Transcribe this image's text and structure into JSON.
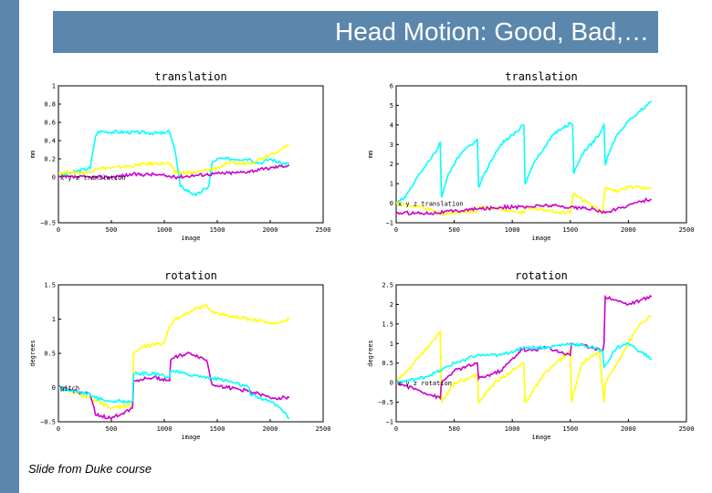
{
  "slide": {
    "title": "Head Motion: Good, Bad,…",
    "footer": "Slide from Duke course",
    "colors": {
      "background_band": "#5b87ad",
      "title_text": "#ffffff"
    }
  },
  "chart_data": [
    {
      "type": "line",
      "title": "translation",
      "xlabel": "image",
      "ylabel": "mm",
      "xlim": [
        0,
        2500
      ],
      "ylim": [
        -0.5,
        1
      ],
      "x_ticks": [
        0,
        500,
        1000,
        1500,
        2000,
        2500
      ],
      "y_ticks": [
        -0.5,
        0,
        0.2,
        0.4,
        0.6,
        0.8,
        1
      ],
      "y_tick_labels": [
        "−0.5",
        "0",
        "0.2",
        "0.4",
        "0.6",
        "0.8",
        "1"
      ],
      "annotation": "x y z translation",
      "series": [
        {
          "color": "#00ffff",
          "x": [
            0,
            120,
            300,
            350,
            380,
            1000,
            1050,
            1100,
            1150,
            1300,
            1420,
            1450,
            1500,
            1800,
            1900,
            2000,
            2100,
            2180
          ],
          "y": [
            0,
            0.05,
            0.1,
            0.45,
            0.5,
            0.48,
            0.5,
            0.3,
            -0.1,
            -0.2,
            -0.1,
            0.15,
            0.2,
            0.2,
            0.15,
            0.2,
            0.15,
            0.15
          ]
        },
        {
          "color": "#ffff00",
          "x": [
            0,
            300,
            350,
            500,
            900,
            1050,
            1100,
            1300,
            1500,
            1600,
            1800,
            1900,
            2000,
            2100,
            2180
          ],
          "y": [
            0.05,
            0.05,
            0.1,
            0.1,
            0.15,
            0.15,
            0.05,
            0.05,
            0.1,
            0.15,
            0.15,
            0.2,
            0.25,
            0.3,
            0.35
          ]
        },
        {
          "color": "#cc00cc",
          "x": [
            0,
            300,
            500,
            700,
            900,
            1100,
            1300,
            1500,
            1700,
            1900,
            2100,
            2180
          ],
          "y": [
            0,
            0,
            0,
            0.03,
            0.03,
            0,
            0.02,
            0.04,
            0.05,
            0.08,
            0.12,
            0.13
          ]
        }
      ]
    },
    {
      "type": "line",
      "title": "translation",
      "xlabel": "image",
      "ylabel": "mm",
      "xlim": [
        0,
        2500
      ],
      "ylim": [
        -1,
        6
      ],
      "x_ticks": [
        0,
        500,
        1000,
        1500,
        2000,
        2500
      ],
      "y_ticks": [
        -1,
        0,
        1,
        2,
        3,
        4,
        5,
        6
      ],
      "y_tick_labels": [
        "−1",
        "0",
        "1",
        "2",
        "3",
        "4",
        "5",
        "6"
      ],
      "annotation": "x y z translation",
      "series": [
        {
          "color": "#00ffff",
          "x": [
            0,
            80,
            200,
            350,
            380,
            390,
            450,
            550,
            650,
            700,
            710,
            800,
            900,
            1000,
            1100,
            1110,
            1200,
            1350,
            1500,
            1520,
            1530,
            1600,
            1750,
            1790,
            1800,
            1830,
            1900,
            2000,
            2100,
            2200
          ],
          "y": [
            0,
            0.3,
            1.5,
            2.7,
            3.1,
            0.3,
            1.5,
            2.5,
            3.0,
            3.3,
            0.8,
            2.0,
            3.0,
            3.5,
            4.0,
            1.0,
            2.2,
            3.5,
            4.1,
            4.0,
            1.5,
            2.5,
            3.5,
            4.0,
            2.0,
            2.5,
            3.5,
            4.2,
            4.7,
            5.2
          ]
        },
        {
          "color": "#ffff00",
          "x": [
            0,
            100,
            300,
            400,
            500,
            700,
            710,
            900,
            1100,
            1110,
            1300,
            1500,
            1530,
            1600,
            1780,
            1790,
            1800,
            1900,
            2000,
            2100,
            2200
          ],
          "y": [
            0,
            -0.1,
            -0.3,
            -0.6,
            -0.5,
            -0.4,
            -0.2,
            -0.3,
            -0.5,
            -0.2,
            -0.4,
            -0.5,
            0.5,
            0.2,
            -0.5,
            0.2,
            0.8,
            0.6,
            0.8,
            0.8,
            0.8
          ]
        },
        {
          "color": "#cc00cc",
          "x": [
            0,
            300,
            500,
            700,
            900,
            1100,
            1300,
            1500,
            1700,
            1800,
            1900,
            2000,
            2100,
            2200
          ],
          "y": [
            -0.5,
            -0.5,
            -0.4,
            -0.3,
            -0.2,
            -0.2,
            -0.1,
            -0.2,
            -0.3,
            -0.5,
            -0.3,
            -0.1,
            0.1,
            0.2
          ]
        }
      ]
    },
    {
      "type": "line",
      "title": "rotation",
      "xlabel": "image",
      "ylabel": "degrees",
      "xlim": [
        0,
        2500
      ],
      "ylim": [
        -0.5,
        1.5
      ],
      "x_ticks": [
        0,
        500,
        1000,
        1500,
        2000,
        2500
      ],
      "y_ticks": [
        -0.5,
        0,
        0.5,
        1,
        1.5
      ],
      "y_tick_labels": [
        "−0.5",
        "0",
        "0.5",
        "1",
        "1.5"
      ],
      "annotation": "pitch",
      "series": [
        {
          "color": "#ffff00",
          "x": [
            0,
            200,
            350,
            500,
            700,
            710,
            800,
            1000,
            1050,
            1100,
            1300,
            1400,
            1450,
            1600,
            1800,
            2000,
            2100,
            2180
          ],
          "y": [
            0,
            -0.1,
            -0.2,
            -0.3,
            -0.25,
            0.5,
            0.6,
            0.65,
            0.9,
            1.0,
            1.15,
            1.2,
            1.1,
            1.05,
            1.0,
            0.95,
            0.95,
            1.0
          ]
        },
        {
          "color": "#cc00cc",
          "x": [
            0,
            300,
            350,
            500,
            700,
            710,
            900,
            1050,
            1060,
            1100,
            1250,
            1400,
            1450,
            1600,
            1800,
            1900,
            2000,
            2180
          ],
          "y": [
            0,
            -0.1,
            -0.4,
            -0.45,
            -0.3,
            0.1,
            0.15,
            0.1,
            0.4,
            0.45,
            0.5,
            0.4,
            0.05,
            0.0,
            -0.05,
            -0.1,
            -0.15,
            -0.15
          ]
        },
        {
          "color": "#00ffff",
          "x": [
            0,
            300,
            350,
            500,
            700,
            710,
            900,
            1050,
            1060,
            1200,
            1400,
            1600,
            1800,
            1810,
            1900,
            2000,
            2100,
            2180
          ],
          "y": [
            0,
            -0.1,
            -0.15,
            -0.2,
            -0.2,
            0.2,
            0.2,
            0.15,
            0.25,
            0.2,
            0.15,
            0.1,
            0.0,
            -0.1,
            -0.15,
            -0.2,
            -0.3,
            -0.45
          ]
        }
      ]
    },
    {
      "type": "line",
      "title": "rotation",
      "xlabel": "image",
      "ylabel": "degrees",
      "xlim": [
        0,
        2500
      ],
      "ylim": [
        -1,
        2.5
      ],
      "x_ticks": [
        0,
        500,
        1000,
        1500,
        2000,
        2500
      ],
      "y_ticks": [
        -1,
        -0.5,
        0,
        0.5,
        1,
        1.5,
        2,
        2.5
      ],
      "y_tick_labels": [
        "−1",
        "−0.5",
        "0",
        "0.5",
        "1",
        "1.5",
        "2",
        "2.5"
      ],
      "annotation": "x y z rotation",
      "series": [
        {
          "color": "#ffff00",
          "x": [
            0,
            150,
            300,
            380,
            390,
            500,
            700,
            710,
            850,
            1100,
            1110,
            1300,
            1500,
            1510,
            1600,
            1750,
            1790,
            1800,
            1900,
            2000,
            2100,
            2200
          ],
          "y": [
            0,
            0.5,
            1.0,
            1.3,
            -0.5,
            0.0,
            0.2,
            -0.5,
            0.0,
            0.5,
            -0.5,
            0.3,
            0.8,
            -0.5,
            0.5,
            0.8,
            -0.5,
            0.0,
            0.5,
            1.0,
            1.5,
            1.7
          ]
        },
        {
          "color": "#cc00cc",
          "x": [
            0,
            200,
            380,
            390,
            500,
            700,
            710,
            900,
            1100,
            1110,
            1300,
            1500,
            1510,
            1700,
            1780,
            1790,
            1800,
            1900,
            2000,
            2100,
            2200
          ],
          "y": [
            0,
            -0.2,
            -0.4,
            0.0,
            0.3,
            0.5,
            0.1,
            0.3,
            0.9,
            0.8,
            0.9,
            0.7,
            1.0,
            0.9,
            0.8,
            1.0,
            2.2,
            2.1,
            2.0,
            2.1,
            2.2
          ]
        },
        {
          "color": "#00ffff",
          "x": [
            0,
            200,
            380,
            500,
            700,
            900,
            1100,
            1300,
            1500,
            1700,
            1780,
            1790,
            1900,
            2000,
            2100,
            2200
          ],
          "y": [
            0,
            0.1,
            0.3,
            0.5,
            0.7,
            0.7,
            0.9,
            0.9,
            1.0,
            0.9,
            0.8,
            0.4,
            0.9,
            1.0,
            0.8,
            0.6
          ]
        }
      ]
    }
  ]
}
